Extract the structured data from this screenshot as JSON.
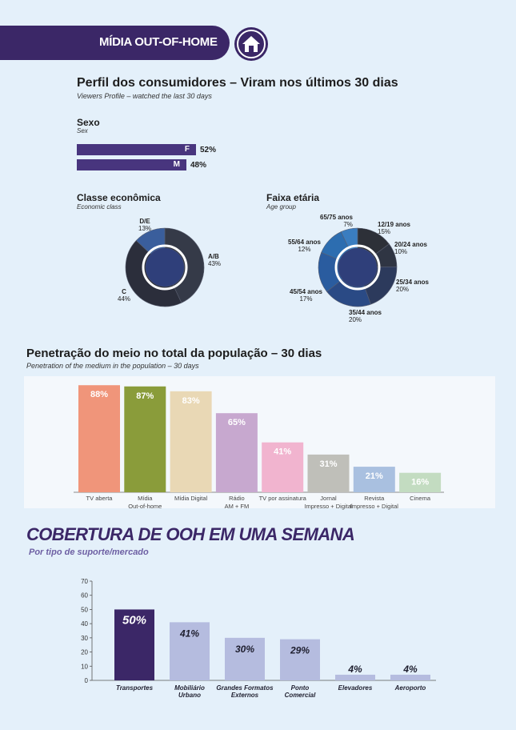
{
  "header": {
    "title": "MÍDIA OUT-OF-HOME"
  },
  "profile": {
    "title": "Perfil dos consumidores – Viram nos últimos 30 dias",
    "subtitle": "Viewers Profile – watched the last 30 days"
  },
  "sex": {
    "title": "Sexo",
    "subtitle": "Sex",
    "items": [
      {
        "label": "F",
        "value": 52,
        "value_text": "52%"
      },
      {
        "label": "M",
        "value": 48,
        "value_text": "48%"
      }
    ]
  },
  "class": {
    "title": "Classe econômica",
    "subtitle": "Economic class",
    "slices": [
      {
        "label": "A/B",
        "value": 43,
        "value_text": "43%",
        "color": "#353a48"
      },
      {
        "label": "C",
        "value": 44,
        "value_text": "44%",
        "color": "#2b2e3b"
      },
      {
        "label": "D/E",
        "value": 13,
        "value_text": "13%",
        "color": "#3a5e9c"
      }
    ]
  },
  "age": {
    "title": "Faixa etária",
    "subtitle": "Age group",
    "slices": [
      {
        "label": "12/19 anos",
        "value": 15,
        "value_text": "15%",
        "color": "#2d3038"
      },
      {
        "label": "20/24 anos",
        "value": 10,
        "value_text": "10%",
        "color": "#2f3543"
      },
      {
        "label": "25/34 anos",
        "value": 20,
        "value_text": "20%",
        "color": "#2c3a5c"
      },
      {
        "label": "35/44 anos",
        "value": 20,
        "value_text": "20%",
        "color": "#2a4a85"
      },
      {
        "label": "45/54 anos",
        "value": 17,
        "value_text": "17%",
        "color": "#2a5c9f"
      },
      {
        "label": "55/64 anos",
        "value": 12,
        "value_text": "12%",
        "color": "#2c6db0"
      },
      {
        "label": "65/75 anos",
        "value": 7,
        "value_text": "7%",
        "color": "#3a7dc0"
      }
    ]
  },
  "penetration": {
    "title": "Penetração do meio no total da população – 30 dias",
    "subtitle": "Penetration of the medium in the population – 30 days"
  },
  "coverage": {
    "title": "COBERTURA  DE OOH  EM UMA SEMANA",
    "subtitle": "Por tipo de suporte/mercado"
  },
  "chart_data": [
    {
      "type": "bar",
      "categories": [
        "TV aberta",
        "Mídia Out-of-home",
        "Mídia Digital",
        "Rádio AM + FM",
        "TV por assinatura",
        "Jornal Impresso + Digital",
        "Revista Impresso + Digital",
        "Cinema"
      ],
      "category_lines": [
        [
          "TV aberta"
        ],
        [
          "Mídia",
          "Out-of-home"
        ],
        [
          "Mídia Digital"
        ],
        [
          "Rádio",
          "AM + FM"
        ],
        [
          "TV por assinatura"
        ],
        [
          "Jornal",
          "Impresso + Digital"
        ],
        [
          "Revista",
          "Impresso + Digital"
        ],
        [
          "Cinema"
        ]
      ],
      "values": [
        88,
        87,
        83,
        65,
        41,
        31,
        21,
        16
      ],
      "value_labels": [
        "88%",
        "87%",
        "83%",
        "65%",
        "41%",
        "31%",
        "21%",
        "16%"
      ],
      "colors": [
        "#f0957a",
        "#8a9c3a",
        "#e9d8b5",
        "#c7a8cf",
        "#f1b4cf",
        "#bfbfb9",
        "#a9c0e0",
        "#c3dcc1"
      ],
      "ylim": [
        0,
        100
      ]
    },
    {
      "type": "bar",
      "categories": [
        "Transportes",
        "Mobiliário Urbano",
        "Grandes Formatos Externos",
        "Ponto Comercial",
        "Elevadores",
        "Aeroporto"
      ],
      "category_lines": [
        [
          "Transportes"
        ],
        [
          "Mobiliário",
          "Urbano"
        ],
        [
          "Grandes Formatos",
          "Externos"
        ],
        [
          "Ponto",
          "Comercial"
        ],
        [
          "Elevadores"
        ],
        [
          "Aeroporto"
        ]
      ],
      "values": [
        50,
        41,
        30,
        29,
        4,
        4
      ],
      "value_labels": [
        "50%",
        "41%",
        "30%",
        "29%",
        "4%",
        "4%"
      ],
      "colors": [
        "#3b2767",
        "#b5bcdf",
        "#b5bcdf",
        "#b5bcdf",
        "#b5bcdf",
        "#b5bcdf"
      ],
      "yticks": [
        "0",
        "10",
        "20",
        "30",
        "40",
        "50",
        "60",
        "70"
      ],
      "ylim": [
        0,
        70
      ]
    }
  ]
}
